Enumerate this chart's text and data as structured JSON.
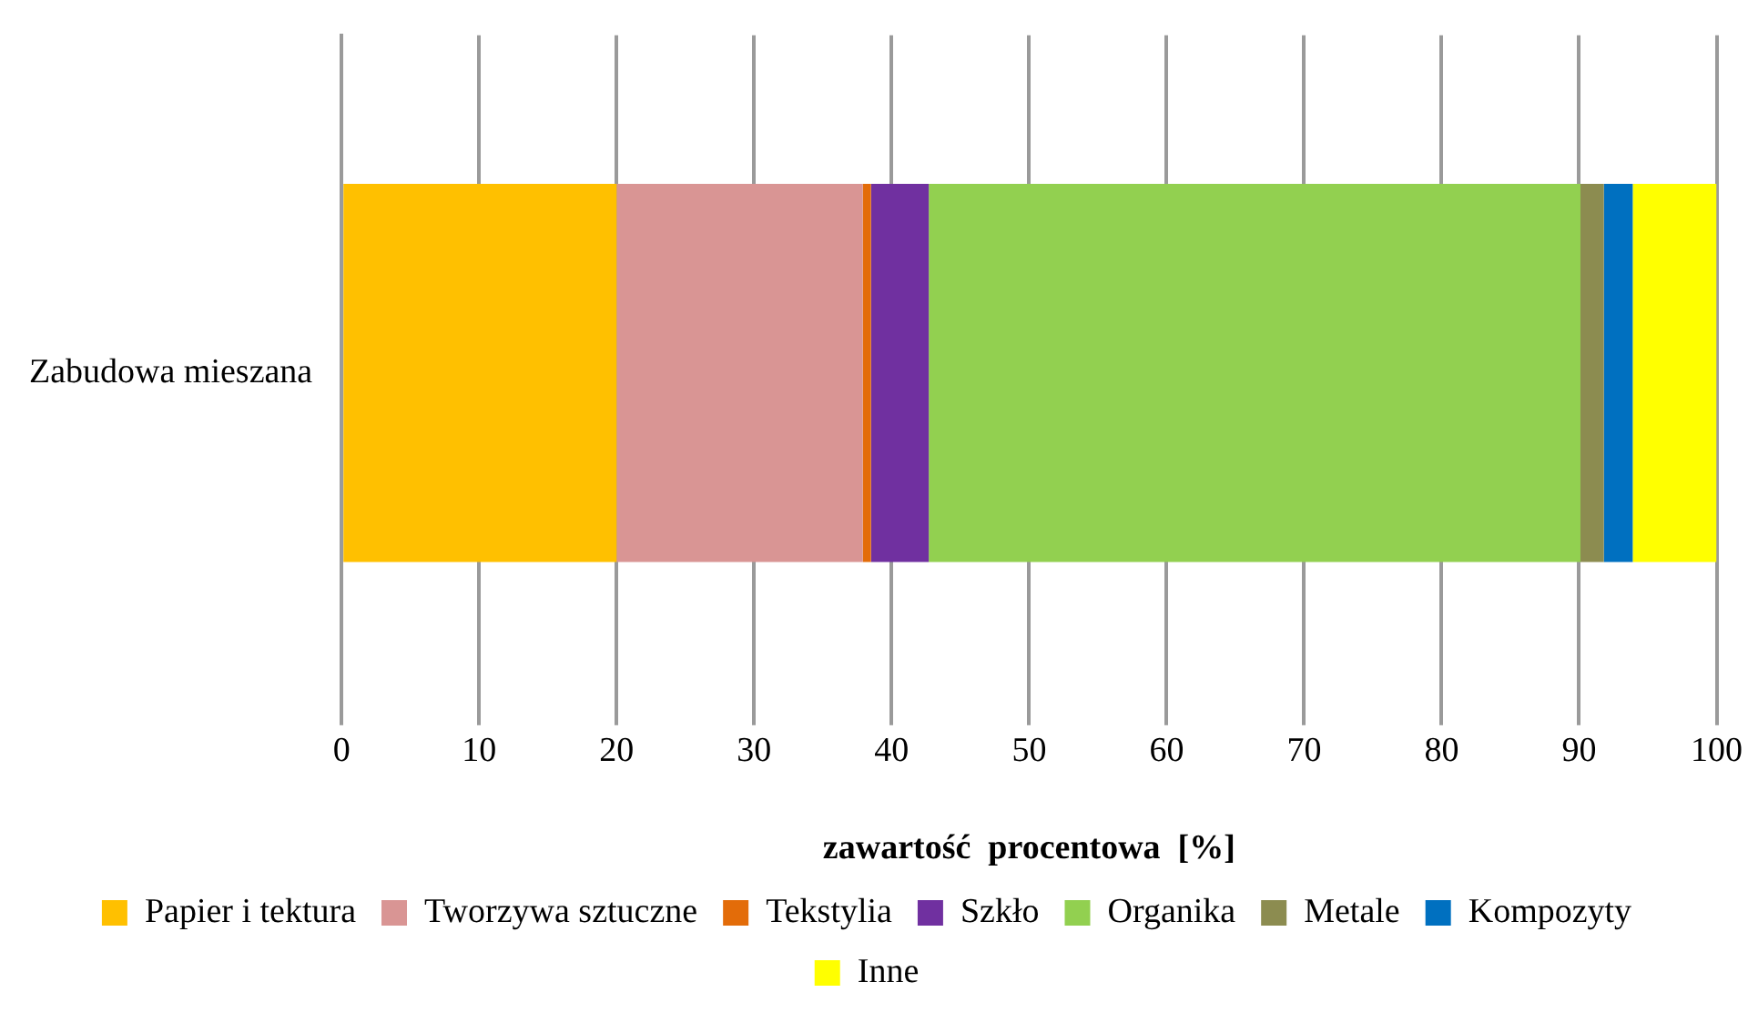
{
  "chart_data": {
    "type": "bar",
    "orientation": "horizontal",
    "stacked": true,
    "xlabel": "zawartość  procentowa  [%]",
    "categories": [
      "Zabudowa mieszana"
    ],
    "series": [
      {
        "name": "Papier i tektura",
        "color": "#ffc000",
        "values": [
          20
        ]
      },
      {
        "name": "Tworzywa sztuczne",
        "color": "#d99594",
        "values": [
          17.9
        ]
      },
      {
        "name": "Tekstylia",
        "color": "#e36c09",
        "values": [
          0.6
        ]
      },
      {
        "name": "Szkło",
        "color": "#7030a0",
        "values": [
          4.2
        ]
      },
      {
        "name": "Organika",
        "color": "#92d050",
        "values": [
          47.4
        ]
      },
      {
        "name": "Metale",
        "color": "#8c8c50",
        "values": [
          1.7
        ]
      },
      {
        "name": "Kompozyty",
        "color": "#0070c0",
        "values": [
          2.1
        ]
      },
      {
        "name": "Inne",
        "color": "#ffff00",
        "values": [
          6.1
        ]
      }
    ],
    "xlim": [
      0,
      100
    ],
    "xticks": [
      0,
      10,
      20,
      30,
      40,
      50,
      60,
      70,
      80,
      90,
      100
    ],
    "grid": "x",
    "legend": "bottom"
  }
}
